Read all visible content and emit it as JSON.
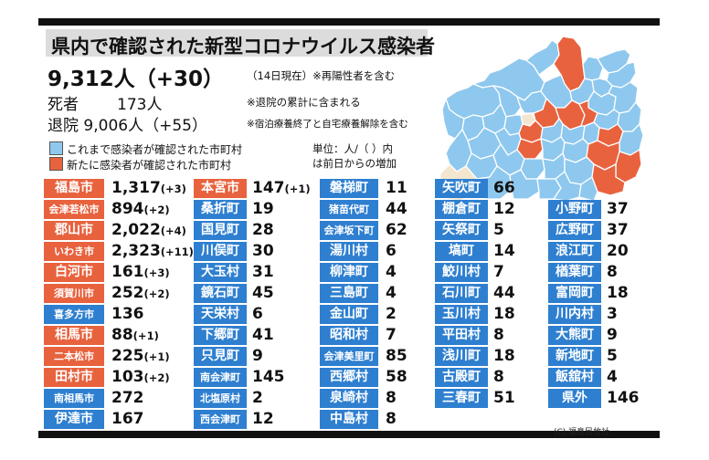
{
  "title": "県内で確認された新型コロナウイルス感染者",
  "stats": {
    "total": "9,312人（+30）",
    "total_note": "（14日現在）※再陽性者を含む",
    "deaths_label": "死者",
    "deaths_value": "173人",
    "deaths_note": "※退院の累計に含まれる",
    "discharged": "退院 9,006人（+55）",
    "discharged_note": "※宿泊療養終了と自宅療養解除を含む"
  },
  "legend": {
    "past": "これまで感染者が確認された市町村",
    "new": "新たに感染者が確認された市町村"
  },
  "unit_note": [
    "単位：人/（  ）内",
    "は前日からの増加"
  ],
  "colors": {
    "blue": "#2e7fd0",
    "red": "#e8623e",
    "map_light_blue": "#8ec8ee",
    "map_cream": "#f3e6cf"
  },
  "columns": [
    [
      {
        "name": "福島市",
        "value": "1,317",
        "diff": "(+3)",
        "red": true
      },
      {
        "name": "会津若松市",
        "value": "894",
        "diff": "(+2)",
        "red": true
      },
      {
        "name": "郡山市",
        "value": "2,022",
        "diff": "(+4)",
        "red": true
      },
      {
        "name": "いわき市",
        "value": "2,323",
        "diff": "(+11)",
        "red": true
      },
      {
        "name": "白河市",
        "value": "161",
        "diff": "(+3)",
        "red": true
      },
      {
        "name": "須賀川市",
        "value": "252",
        "diff": "(+2)",
        "red": true
      },
      {
        "name": "喜多方市",
        "value": "136",
        "diff": "",
        "red": false
      },
      {
        "name": "相馬市",
        "value": "88",
        "diff": "(+1)",
        "red": true
      },
      {
        "name": "二本松市",
        "value": "225",
        "diff": "(+1)",
        "red": true
      },
      {
        "name": "田村市",
        "value": "103",
        "diff": "(+2)",
        "red": true
      },
      {
        "name": "南相馬市",
        "value": "272",
        "diff": "",
        "red": false
      },
      {
        "name": "伊達市",
        "value": "167",
        "diff": "",
        "red": false
      }
    ],
    [
      {
        "name": "本宮市",
        "value": "147",
        "diff": "(+1)",
        "red": true
      },
      {
        "name": "桑折町",
        "value": "19",
        "diff": "",
        "red": false
      },
      {
        "name": "国見町",
        "value": "28",
        "diff": "",
        "red": false
      },
      {
        "name": "川俣町",
        "value": "30",
        "diff": "",
        "red": false
      },
      {
        "name": "大玉村",
        "value": "31",
        "diff": "",
        "red": false
      },
      {
        "name": "鏡石町",
        "value": "45",
        "diff": "",
        "red": false
      },
      {
        "name": "天栄村",
        "value": "6",
        "diff": "",
        "red": false
      },
      {
        "name": "下郷町",
        "value": "41",
        "diff": "",
        "red": false
      },
      {
        "name": "只見町",
        "value": "9",
        "diff": "",
        "red": false
      },
      {
        "name": "南会津町",
        "value": "145",
        "diff": "",
        "red": false
      },
      {
        "name": "北塩原村",
        "value": "2",
        "diff": "",
        "red": false
      },
      {
        "name": "西会津町",
        "value": "12",
        "diff": "",
        "red": false
      }
    ],
    [
      {
        "name": "磐梯町",
        "value": "11",
        "diff": "",
        "red": false
      },
      {
        "name": "猪苗代町",
        "value": "44",
        "diff": "",
        "red": false
      },
      {
        "name": "会津坂下町",
        "value": "62",
        "diff": "",
        "red": false
      },
      {
        "name": "湯川村",
        "value": "6",
        "diff": "",
        "red": false
      },
      {
        "name": "柳津町",
        "value": "4",
        "diff": "",
        "red": false
      },
      {
        "name": "三島町",
        "value": "4",
        "diff": "",
        "red": false
      },
      {
        "name": "金山町",
        "value": "2",
        "diff": "",
        "red": false
      },
      {
        "name": "昭和村",
        "value": "7",
        "diff": "",
        "red": false
      },
      {
        "name": "会津美里町",
        "value": "85",
        "diff": "",
        "red": false
      },
      {
        "name": "西郷村",
        "value": "58",
        "diff": "",
        "red": false
      },
      {
        "name": "泉崎村",
        "value": "8",
        "diff": "",
        "red": false
      },
      {
        "name": "中島村",
        "value": "8",
        "diff": "",
        "red": false
      }
    ],
    [
      {
        "name": "矢吹町",
        "value": "66",
        "diff": "",
        "red": false
      },
      {
        "name": "棚倉町",
        "value": "12",
        "diff": "",
        "red": false
      },
      {
        "name": "矢祭町",
        "value": "5",
        "diff": "",
        "red": false
      },
      {
        "name": "塙町",
        "value": "14",
        "diff": "",
        "red": false
      },
      {
        "name": "鮫川村",
        "value": "7",
        "diff": "",
        "red": false
      },
      {
        "name": "石川町",
        "value": "44",
        "diff": "",
        "red": false
      },
      {
        "name": "玉川村",
        "value": "18",
        "diff": "",
        "red": false
      },
      {
        "name": "平田村",
        "value": "8",
        "diff": "",
        "red": false
      },
      {
        "name": "浅川町",
        "value": "18",
        "diff": "",
        "red": false
      },
      {
        "name": "古殿町",
        "value": "8",
        "diff": "",
        "red": false
      },
      {
        "name": "三春町",
        "value": "51",
        "diff": "",
        "red": false
      }
    ],
    [
      {
        "name": "小野町",
        "value": "37",
        "diff": "",
        "red": false
      },
      {
        "name": "広野町",
        "value": "37",
        "diff": "",
        "red": false
      },
      {
        "name": "浪江町",
        "value": "20",
        "diff": "",
        "red": false
      },
      {
        "name": "楢葉町",
        "value": "8",
        "diff": "",
        "red": false
      },
      {
        "name": "富岡町",
        "value": "18",
        "diff": "",
        "red": false
      },
      {
        "name": "川内村",
        "value": "3",
        "diff": "",
        "red": false
      },
      {
        "name": "大熊町",
        "value": "9",
        "diff": "",
        "red": false
      },
      {
        "name": "新地町",
        "value": "5",
        "diff": "",
        "red": false
      },
      {
        "name": "飯舘村",
        "value": "4",
        "diff": "",
        "red": false
      },
      {
        "name": "県外",
        "value": "146",
        "diff": "",
        "red": false
      }
    ]
  ],
  "credit": "(C) 福島民放社"
}
